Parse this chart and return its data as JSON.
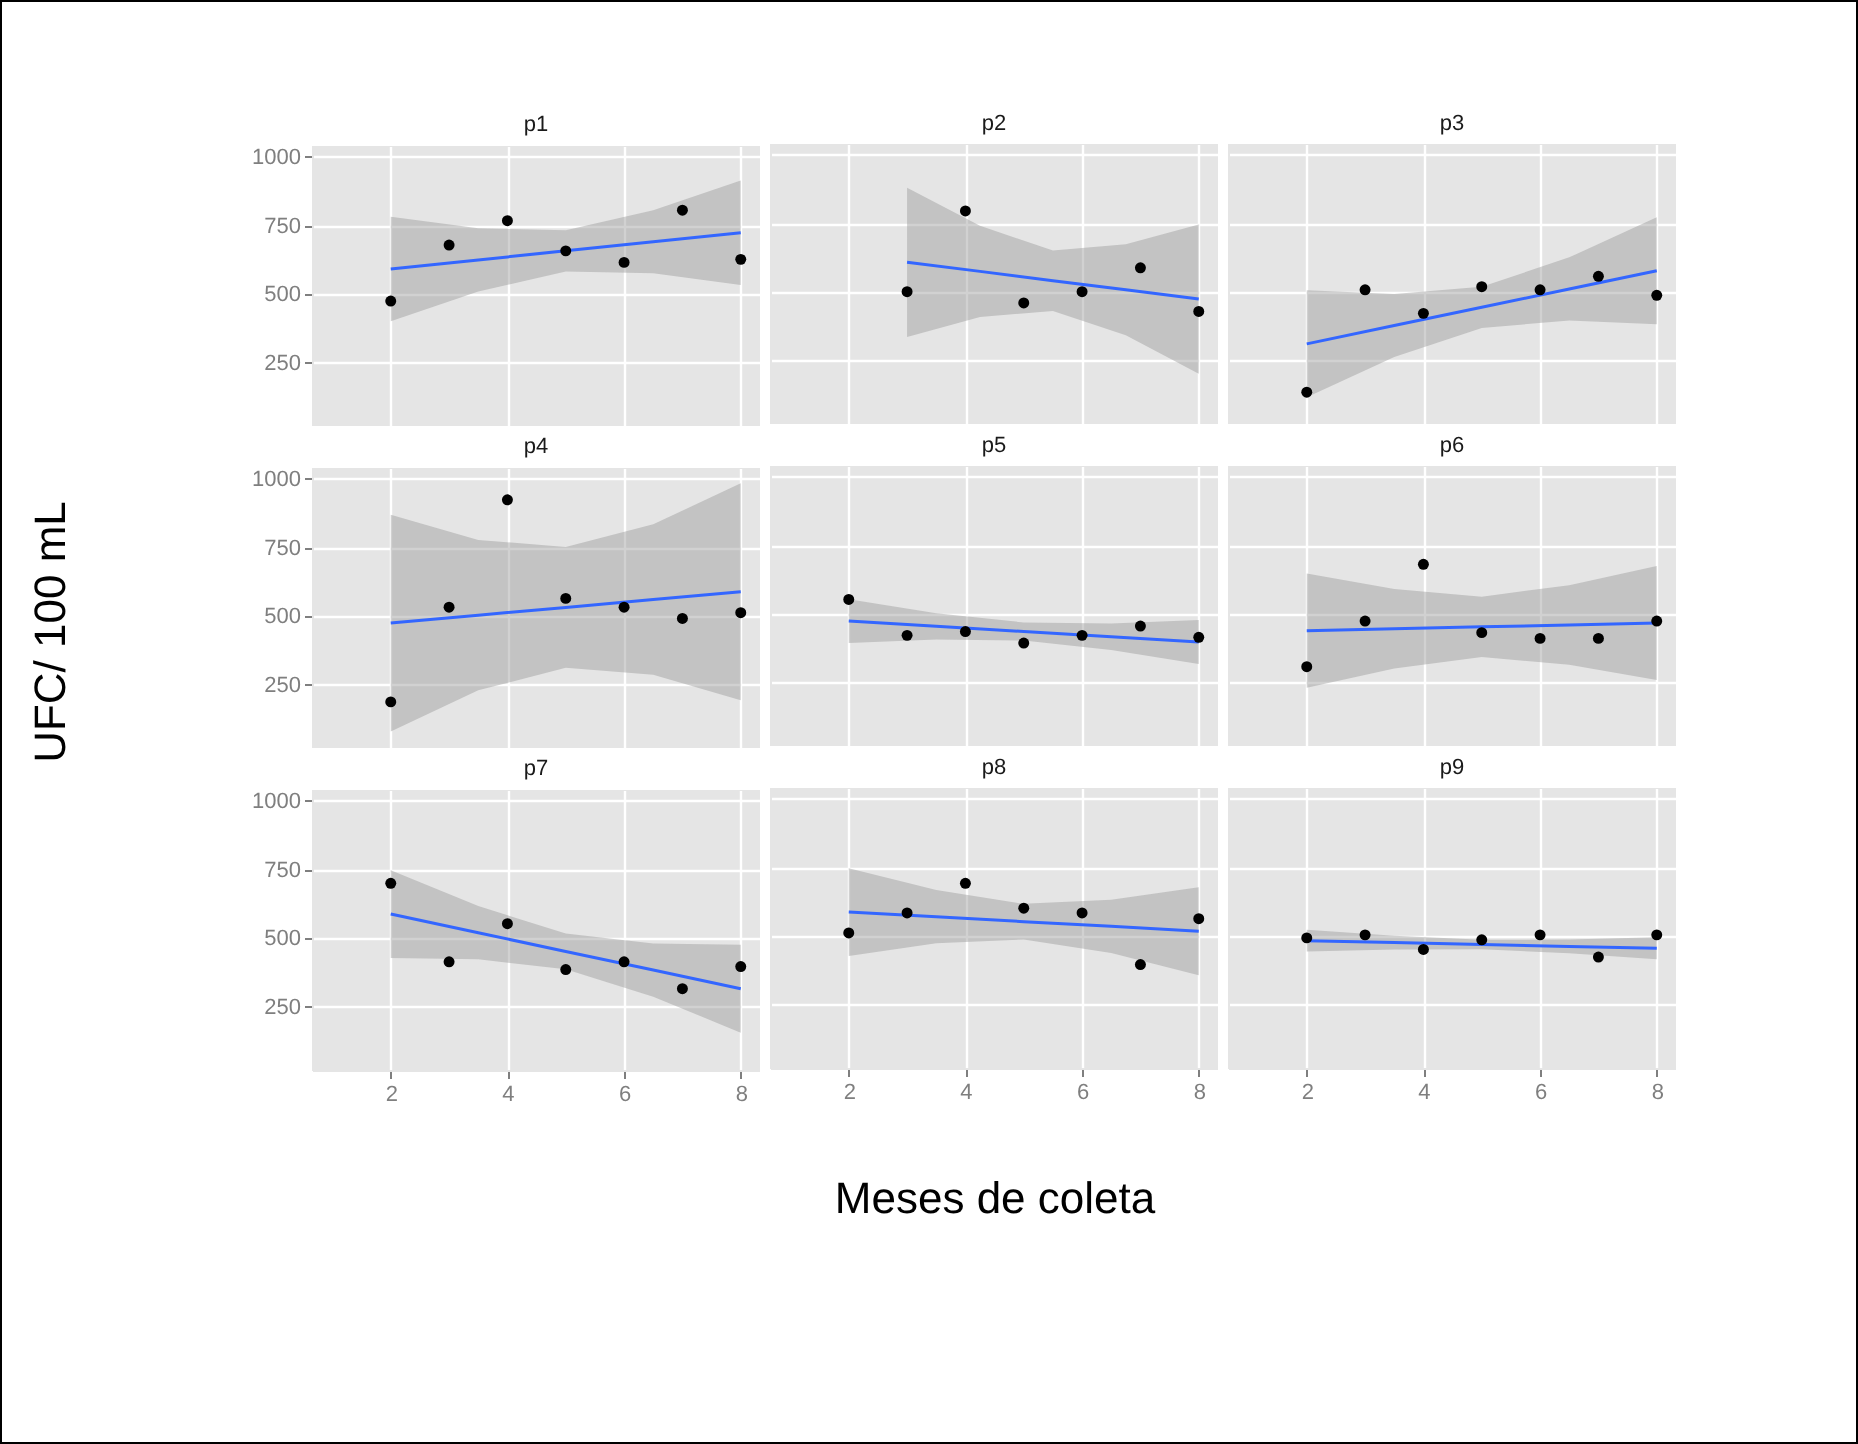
{
  "chart_data": [
    {
      "type": "scatter",
      "title": "p1",
      "x": [
        2,
        3,
        4,
        5,
        6,
        7,
        8
      ],
      "xlim": [
        0.65,
        8.33
      ],
      "xticks": [
        2,
        4,
        6,
        8
      ],
      "ylim": [
        20,
        1040
      ],
      "yticks": [
        250,
        500,
        750,
        1000
      ],
      "grid": true,
      "tick_labels": "y",
      "series": [
        {
          "type": "line",
          "color": "#3366ff",
          "x": [
            2,
            3.5,
            5,
            6.5,
            8
          ],
          "values": [
            592,
            625,
            658,
            691,
            724
          ],
          "lower": [
            402,
            510,
            583,
            576,
            534
          ],
          "upper": [
            782,
            740,
            733,
            806,
            914
          ]
        },
        {
          "marker": "circle",
          "color": "#000000",
          "values": [
            475,
            679,
            768,
            658,
            616,
            806,
            627
          ]
        }
      ]
    },
    {
      "type": "scatter",
      "title": "p2",
      "x": [
        3,
        4,
        5,
        6,
        7,
        8
      ],
      "xlim": [
        0.65,
        8.33
      ],
      "xticks": [
        2,
        4,
        6,
        8
      ],
      "ylim": [
        20,
        1040
      ],
      "yticks": [
        250,
        500,
        750,
        1000
      ],
      "grid": true,
      "tick_labels": false,
      "series": [
        {
          "type": "line",
          "color": "#3366ff",
          "x": [
            3,
            4.25,
            5.5,
            6.75,
            8
          ],
          "values": [
            609,
            576,
            542,
            509,
            475
          ],
          "lower": [
            337,
            410,
            432,
            343,
            203
          ],
          "upper": [
            881,
            742,
            652,
            675,
            747
          ]
        },
        {
          "marker": "circle",
          "color": "#000000",
          "values": [
            502,
            796,
            461,
            502,
            589,
            430
          ]
        }
      ]
    },
    {
      "type": "scatter",
      "title": "p3",
      "x": [
        2,
        3,
        4,
        5,
        6,
        7,
        8
      ],
      "xlim": [
        0.65,
        8.33
      ],
      "xticks": [
        2,
        4,
        6,
        8
      ],
      "ylim": [
        20,
        1040
      ],
      "yticks": [
        250,
        500,
        750,
        1000
      ],
      "grid": true,
      "tick_labels": false,
      "series": [
        {
          "type": "line",
          "color": "#3366ff",
          "x": [
            2,
            3.5,
            5,
            6.5,
            8
          ],
          "values": [
            312,
            379,
            445,
            512,
            578
          ],
          "lower": [
            117,
            264,
            370,
            397,
            383
          ],
          "upper": [
            507,
            494,
            520,
            627,
            773
          ]
        },
        {
          "marker": "circle",
          "color": "#000000",
          "values": [
            136,
            509,
            423,
            520,
            509,
            558,
            489
          ]
        }
      ]
    },
    {
      "type": "scatter",
      "title": "p4",
      "ylabel": "UFC/ 100 mL",
      "x": [
        2,
        3,
        4,
        5,
        6,
        7,
        8
      ],
      "xlim": [
        0.65,
        8.33
      ],
      "xticks": [
        2,
        4,
        6,
        8
      ],
      "ylim": [
        20,
        1040
      ],
      "yticks": [
        250,
        500,
        750,
        1000
      ],
      "grid": true,
      "tick_labels": "y",
      "series": [
        {
          "type": "line",
          "color": "#3366ff",
          "x": [
            2,
            3.5,
            5,
            6.5,
            8
          ],
          "values": [
            475,
            504,
            532,
            561,
            589
          ],
          "lower": [
            80,
            230,
            312,
            287,
            194
          ],
          "upper": [
            870,
            778,
            752,
            835,
            984
          ]
        },
        {
          "marker": "circle",
          "color": "#000000",
          "values": [
            188,
            533,
            924,
            565,
            533,
            492,
            513
          ]
        }
      ]
    },
    {
      "type": "scatter",
      "title": "p5",
      "x": [
        2,
        3,
        4,
        5,
        6,
        7,
        8
      ],
      "xlim": [
        0.65,
        8.33
      ],
      "xticks": [
        2,
        4,
        6,
        8
      ],
      "ylim": [
        20,
        1040
      ],
      "yticks": [
        250,
        500,
        750,
        1000
      ],
      "grid": true,
      "tick_labels": false,
      "series": [
        {
          "type": "line",
          "color": "#3366ff",
          "x": [
            2,
            3.5,
            5,
            6.5,
            8
          ],
          "values": [
            475,
            456,
            437,
            418,
            399
          ],
          "lower": [
            395,
            408,
            404,
            370,
            319
          ],
          "upper": [
            555,
            504,
            470,
            466,
            479
          ]
        },
        {
          "marker": "circle",
          "color": "#000000",
          "values": [
            554,
            423,
            437,
            395,
            423,
            457,
            416
          ]
        }
      ]
    },
    {
      "type": "scatter",
      "title": "p6",
      "x": [
        2,
        3,
        4,
        5,
        6,
        7,
        8
      ],
      "xlim": [
        0.65,
        8.33
      ],
      "xticks": [
        2,
        4,
        6,
        8
      ],
      "ylim": [
        20,
        1040
      ],
      "yticks": [
        250,
        500,
        750,
        1000
      ],
      "grid": true,
      "tick_labels": false,
      "series": [
        {
          "type": "line",
          "color": "#3366ff",
          "x": [
            2,
            3.5,
            5,
            6.5,
            8
          ],
          "values": [
            440,
            447,
            454,
            461,
            468
          ],
          "lower": [
            232,
            302,
            344,
            316,
            260
          ],
          "upper": [
            648,
            592,
            564,
            606,
            676
          ]
        },
        {
          "marker": "circle",
          "color": "#000000",
          "values": [
            309,
            475,
            682,
            433,
            412,
            412,
            475
          ]
        }
      ]
    },
    {
      "type": "scatter",
      "title": "p7",
      "x": [
        2,
        3,
        4,
        5,
        6,
        7,
        8
      ],
      "xlim": [
        0.65,
        8.33
      ],
      "xticks": [
        2,
        4,
        6,
        8
      ],
      "ylim": [
        20,
        1040
      ],
      "yticks": [
        250,
        500,
        750,
        1000
      ],
      "grid": true,
      "series": [
        {
          "type": "line",
          "color": "#3366ff",
          "x": [
            2,
            3.5,
            5,
            6.5,
            8
          ],
          "values": [
            588,
            520,
            452,
            384,
            316
          ],
          "lower": [
            428,
            423,
            387,
            287,
            156
          ],
          "upper": [
            748,
            617,
            517,
            481,
            476
          ]
        },
        {
          "marker": "circle",
          "color": "#000000",
          "values": [
            700,
            414,
            553,
            386,
            414,
            316,
            397
          ]
        }
      ]
    },
    {
      "type": "scatter",
      "title": "p8",
      "xlabel": "Meses de coleta",
      "x": [
        2,
        3,
        4,
        5,
        6,
        7,
        8
      ],
      "xlim": [
        0.65,
        8.33
      ],
      "xticks": [
        2,
        4,
        6,
        8
      ],
      "ylim": [
        20,
        1040
      ],
      "yticks": [
        250,
        500,
        750,
        1000
      ],
      "grid": true,
      "tick_labels": "x",
      "series": [
        {
          "type": "line",
          "color": "#3366ff",
          "x": [
            2,
            3.5,
            5,
            6.5,
            8
          ],
          "values": [
            588,
            571,
            553,
            536,
            518
          ],
          "lower": [
            428,
            474,
            488,
            439,
            358
          ],
          "upper": [
            748,
            668,
            618,
            633,
            678
          ]
        },
        {
          "marker": "circle",
          "color": "#000000",
          "values": [
            512,
            585,
            693,
            602,
            585,
            397,
            564
          ]
        }
      ]
    },
    {
      "type": "scatter",
      "title": "p9",
      "x": [
        2,
        3,
        4,
        5,
        6,
        7,
        8
      ],
      "xlim": [
        0.65,
        8.33
      ],
      "xticks": [
        2,
        4,
        6,
        8
      ],
      "ylim": [
        20,
        1040
      ],
      "yticks": [
        250,
        500,
        750,
        1000
      ],
      "grid": true,
      "tick_labels": "x",
      "series": [
        {
          "type": "line",
          "color": "#3366ff",
          "x": [
            2,
            3.5,
            5,
            6.5,
            8
          ],
          "values": [
            484,
            477,
            470,
            463,
            456
          ],
          "lower": [
            444,
            452,
            453,
            438,
            416
          ],
          "upper": [
            524,
            502,
            487,
            488,
            496
          ]
        },
        {
          "marker": "circle",
          "color": "#000000",
          "values": [
            494,
            505,
            452,
            487,
            505,
            424,
            505
          ]
        }
      ]
    }
  ]
}
